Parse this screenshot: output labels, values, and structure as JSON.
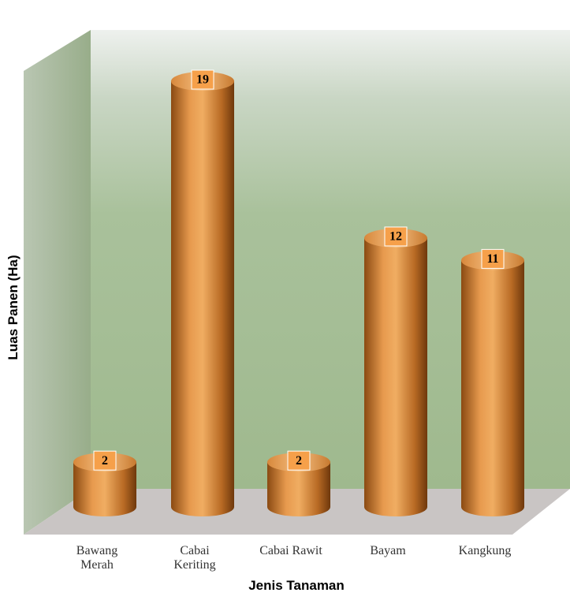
{
  "chart_data": {
    "type": "bar",
    "x_label": "Jenis Tanaman",
    "y_label": "Luas Panen (Ha)",
    "categories": [
      "Bawang Merah",
      "Cabai Keriting",
      "Cabai Rawit",
      "Bayam",
      "Kangkung"
    ],
    "values": [
      2,
      19,
      2,
      12,
      11
    ],
    "color": "#d9822b"
  }
}
